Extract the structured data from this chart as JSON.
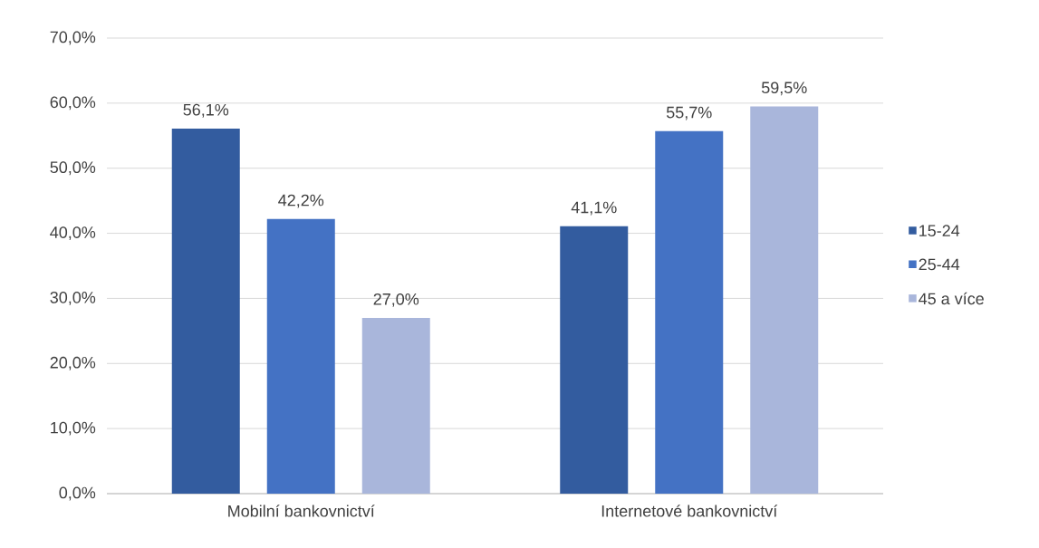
{
  "chart_data": {
    "type": "bar",
    "categories": [
      "Mobilní bankovnictví",
      "Internetové bankovnictví"
    ],
    "series": [
      {
        "name": "15-24",
        "color": "#335c9f",
        "values": [
          56.1,
          41.1
        ],
        "value_labels": [
          "56,1%",
          "41,1%"
        ]
      },
      {
        "name": "25-44",
        "color": "#4472c4",
        "values": [
          42.2,
          55.7
        ],
        "value_labels": [
          "42,2%",
          "55,7%"
        ]
      },
      {
        "name": "45 a více",
        "color": "#a9b6db",
        "values": [
          27.0,
          59.5
        ],
        "value_labels": [
          "27,0%",
          "59,5%"
        ]
      }
    ],
    "ylim": [
      0,
      70
    ],
    "yticks": [
      {
        "value": 0,
        "label": "0,0%"
      },
      {
        "value": 10,
        "label": "10,0%"
      },
      {
        "value": 20,
        "label": "20,0%"
      },
      {
        "value": 30,
        "label": "30,0%"
      },
      {
        "value": 40,
        "label": "40,0%"
      },
      {
        "value": 50,
        "label": "50,0%"
      },
      {
        "value": 60,
        "label": "60,0%"
      },
      {
        "value": 70,
        "label": "70,0%"
      }
    ],
    "grid": "y",
    "legend": "right"
  }
}
